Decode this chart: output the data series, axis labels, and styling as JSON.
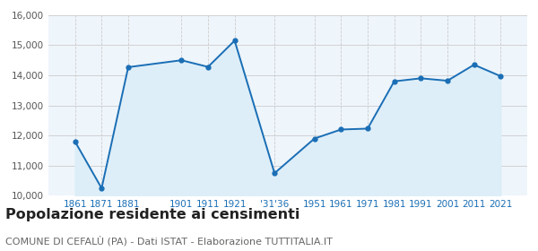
{
  "years_labels": [
    "1861",
    "1871",
    "1881",
    "1901",
    "1911",
    "1921",
    "'31'36",
    "1951",
    "1961",
    "1971",
    "1981",
    "1991",
    "2001",
    "2011",
    "2021"
  ],
  "years_numeric": [
    1861,
    1871,
    1881,
    1901,
    1911,
    1921,
    1936,
    1951,
    1961,
    1971,
    1981,
    1991,
    2001,
    2011,
    2021
  ],
  "values": [
    11800,
    10250,
    14270,
    14500,
    14280,
    15150,
    10750,
    11900,
    12200,
    12230,
    13800,
    13900,
    13820,
    14350,
    13970
  ],
  "line_color": "#1a6eb5",
  "fill_color": "#ddeef8",
  "marker_size": 3.5,
  "ylim": [
    10000,
    16000
  ],
  "yticks": [
    10000,
    11000,
    12000,
    13000,
    14000,
    15000,
    16000
  ],
  "ytick_labels": [
    "10,000",
    "11,000",
    "12,000",
    "13,000",
    "14,000",
    "15,000",
    "16,000"
  ],
  "title": "Popolazione residente ai censimenti",
  "subtitle": "COMUNE DI CEFALÙ (PA) - Dati ISTAT - Elaborazione TUTTITALIA.IT",
  "title_fontsize": 11.5,
  "subtitle_fontsize": 8,
  "grid_color": "#cccccc",
  "bg_color": "#ffffff",
  "plot_bg_color": "#eef5fb",
  "tick_color": "#1a6eb5",
  "tick_fontsize": 7.5
}
